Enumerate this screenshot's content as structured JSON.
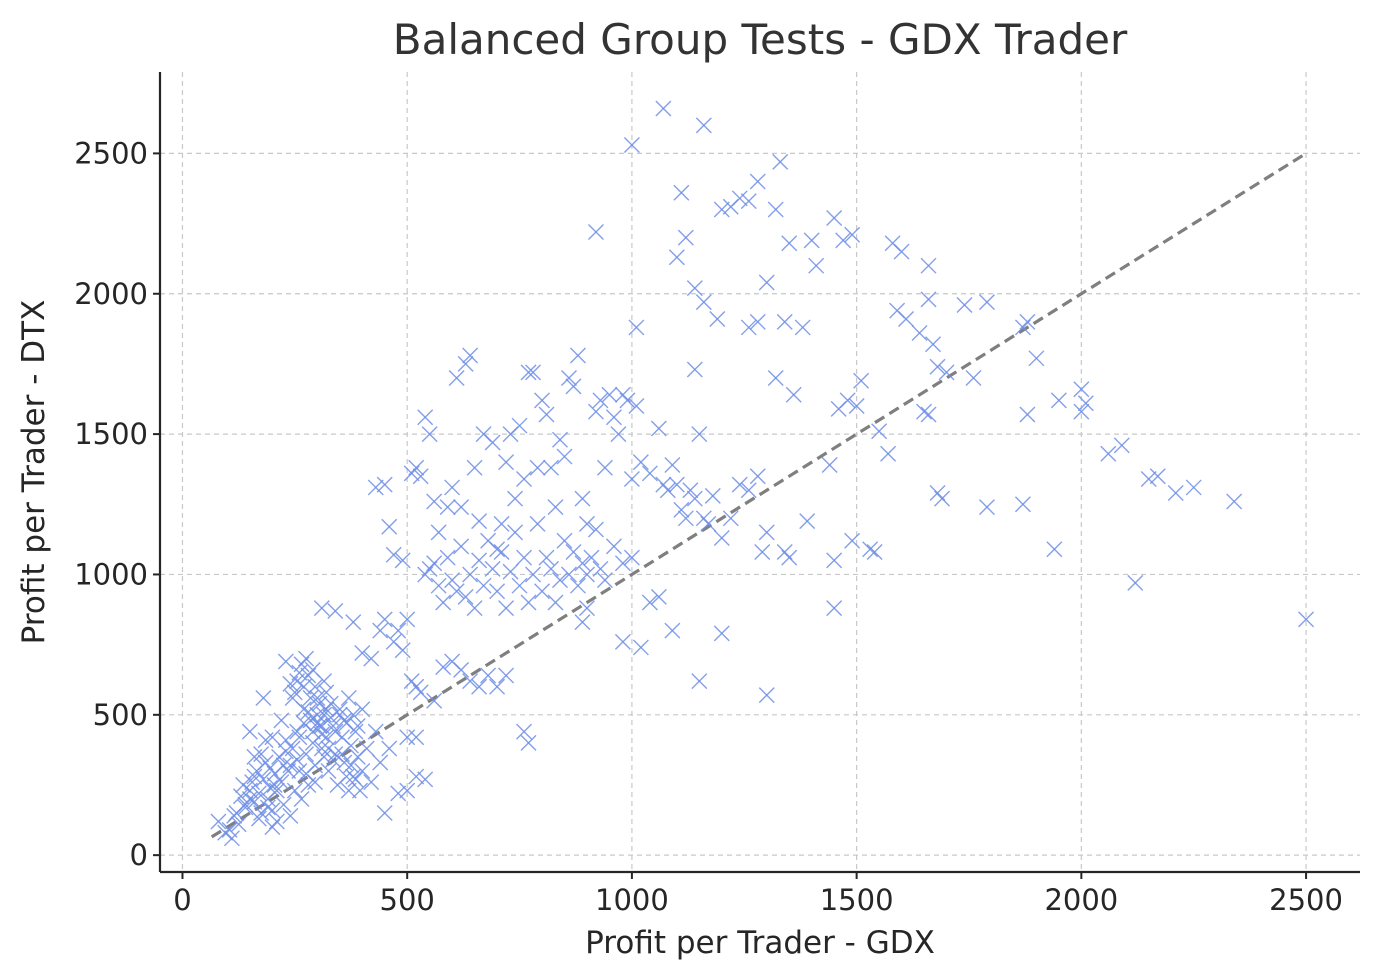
{
  "chart_data": {
    "type": "scatter",
    "title": "Balanced Group Tests - GDX Trader",
    "xlabel": "Profit per Trader - GDX",
    "ylabel": "Profit per Trader - DTX",
    "xlim": [
      -50,
      2620
    ],
    "ylim": [
      -60,
      2790
    ],
    "xticks": [
      0,
      500,
      1000,
      1500,
      2000,
      2500
    ],
    "yticks": [
      0,
      500,
      1000,
      1500,
      2000,
      2500
    ],
    "grid": true,
    "legend": "none",
    "marker": "x",
    "marker_color": "#6f8ee6",
    "reference_line": {
      "style": "dashed",
      "color": "#7f7f7f",
      "x": [
        65,
        2500
      ],
      "y": [
        65,
        2500
      ]
    },
    "points": [
      [
        80,
        120
      ],
      [
        95,
        80
      ],
      [
        110,
        60
      ],
      [
        120,
        150
      ],
      [
        130,
        210
      ],
      [
        140,
        170
      ],
      [
        150,
        230
      ],
      [
        155,
        260
      ],
      [
        160,
        190
      ],
      [
        165,
        300
      ],
      [
        170,
        220
      ],
      [
        175,
        150
      ],
      [
        180,
        270
      ],
      [
        185,
        330
      ],
      [
        190,
        200
      ],
      [
        195,
        240
      ],
      [
        200,
        160
      ],
      [
        205,
        290
      ],
      [
        210,
        120
      ],
      [
        215,
        350
      ],
      [
        220,
        260
      ],
      [
        225,
        180
      ],
      [
        230,
        410
      ],
      [
        235,
        300
      ],
      [
        240,
        140
      ],
      [
        245,
        380
      ],
      [
        250,
        230
      ],
      [
        255,
        440
      ],
      [
        260,
        300
      ],
      [
        265,
        200
      ],
      [
        270,
        520
      ],
      [
        275,
        360
      ],
      [
        280,
        250
      ],
      [
        285,
        480
      ],
      [
        290,
        400
      ],
      [
        295,
        320
      ],
      [
        300,
        560
      ],
      [
        305,
        460
      ],
      [
        310,
        380
      ],
      [
        315,
        500
      ],
      [
        320,
        420
      ],
      [
        325,
        300
      ],
      [
        330,
        540
      ],
      [
        335,
        460
      ],
      [
        340,
        360
      ],
      [
        345,
        250
      ],
      [
        350,
        500
      ],
      [
        355,
        420
      ],
      [
        360,
        330
      ],
      [
        365,
        470
      ],
      [
        370,
        230
      ],
      [
        375,
        390
      ],
      [
        380,
        280
      ],
      [
        385,
        440
      ],
      [
        390,
        350
      ],
      [
        400,
        300
      ],
      [
        410,
        380
      ],
      [
        420,
        260
      ],
      [
        430,
        440
      ],
      [
        440,
        330
      ],
      [
        450,
        150
      ],
      [
        460,
        380
      ],
      [
        480,
        220
      ],
      [
        500,
        420
      ],
      [
        520,
        280
      ],
      [
        250,
        580
      ],
      [
        255,
        620
      ],
      [
        260,
        650
      ],
      [
        265,
        680
      ],
      [
        270,
        600
      ],
      [
        275,
        700
      ],
      [
        280,
        640
      ],
      [
        285,
        560
      ],
      [
        290,
        660
      ],
      [
        295,
        600
      ],
      [
        300,
        500
      ],
      [
        305,
        540
      ],
      [
        310,
        460
      ],
      [
        315,
        620
      ],
      [
        320,
        580
      ],
      [
        230,
        690
      ],
      [
        240,
        610
      ],
      [
        245,
        560
      ],
      [
        200,
        100
      ],
      [
        210,
        230
      ],
      [
        190,
        170
      ],
      [
        170,
        130
      ],
      [
        150,
        200
      ],
      [
        140,
        180
      ],
      [
        125,
        110
      ],
      [
        115,
        140
      ],
      [
        105,
        90
      ],
      [
        135,
        250
      ],
      [
        160,
        350
      ],
      [
        180,
        560
      ],
      [
        200,
        420
      ],
      [
        220,
        480
      ],
      [
        230,
        370
      ],
      [
        240,
        320
      ],
      [
        260,
        420
      ],
      [
        270,
        470
      ],
      [
        280,
        510
      ],
      [
        290,
        440
      ],
      [
        300,
        470
      ],
      [
        310,
        430
      ],
      [
        320,
        520
      ],
      [
        330,
        490
      ],
      [
        340,
        440
      ],
      [
        350,
        520
      ],
      [
        360,
        480
      ],
      [
        370,
        560
      ],
      [
        380,
        500
      ],
      [
        390,
        460
      ],
      [
        400,
        520
      ],
      [
        150,
        440
      ],
      [
        160,
        280
      ],
      [
        175,
        360
      ],
      [
        185,
        410
      ],
      [
        195,
        310
      ],
      [
        205,
        250
      ],
      [
        225,
        320
      ],
      [
        255,
        340
      ],
      [
        275,
        290
      ],
      [
        295,
        260
      ],
      [
        315,
        350
      ],
      [
        325,
        380
      ],
      [
        335,
        340
      ],
      [
        355,
        360
      ],
      [
        365,
        280
      ],
      [
        375,
        320
      ],
      [
        385,
        270
      ],
      [
        395,
        230
      ],
      [
        310,
        880
      ],
      [
        340,
        870
      ],
      [
        380,
        830
      ],
      [
        400,
        720
      ],
      [
        420,
        700
      ],
      [
        440,
        800
      ],
      [
        450,
        840
      ],
      [
        470,
        760
      ],
      [
        480,
        800
      ],
      [
        490,
        730
      ],
      [
        500,
        840
      ],
      [
        510,
        620
      ],
      [
        520,
        600
      ],
      [
        530,
        580
      ],
      [
        540,
        1000
      ],
      [
        550,
        1020
      ],
      [
        560,
        1040
      ],
      [
        570,
        960
      ],
      [
        580,
        900
      ],
      [
        590,
        1060
      ],
      [
        600,
        980
      ],
      [
        610,
        940
      ],
      [
        620,
        1100
      ],
      [
        630,
        920
      ],
      [
        640,
        1000
      ],
      [
        650,
        880
      ],
      [
        660,
        1050
      ],
      [
        670,
        960
      ],
      [
        680,
        1120
      ],
      [
        690,
        1020
      ],
      [
        700,
        940
      ],
      [
        710,
        1080
      ],
      [
        720,
        880
      ],
      [
        730,
        1010
      ],
      [
        740,
        1150
      ],
      [
        750,
        960
      ],
      [
        760,
        1060
      ],
      [
        770,
        900
      ],
      [
        780,
        1000
      ],
      [
        790,
        1180
      ],
      [
        800,
        940
      ],
      [
        810,
        1060
      ],
      [
        820,
        1020
      ],
      [
        830,
        900
      ],
      [
        840,
        980
      ],
      [
        850,
        1120
      ],
      [
        860,
        1000
      ],
      [
        870,
        1080
      ],
      [
        880,
        960
      ],
      [
        890,
        1040
      ],
      [
        900,
        1000
      ],
      [
        910,
        1060
      ],
      [
        920,
        1160
      ],
      [
        930,
        1020
      ],
      [
        940,
        980
      ],
      [
        960,
        1100
      ],
      [
        980,
        1040
      ],
      [
        1000,
        1060
      ],
      [
        430,
        1310
      ],
      [
        450,
        1320
      ],
      [
        460,
        1170
      ],
      [
        470,
        1070
      ],
      [
        490,
        1050
      ],
      [
        510,
        1360
      ],
      [
        520,
        1380
      ],
      [
        530,
        1350
      ],
      [
        540,
        1560
      ],
      [
        550,
        1500
      ],
      [
        560,
        1260
      ],
      [
        570,
        1150
      ],
      [
        590,
        1240
      ],
      [
        600,
        1310
      ],
      [
        610,
        1700
      ],
      [
        620,
        1240
      ],
      [
        630,
        1750
      ],
      [
        640,
        1780
      ],
      [
        650,
        1380
      ],
      [
        660,
        1190
      ],
      [
        670,
        1500
      ],
      [
        690,
        1470
      ],
      [
        700,
        1090
      ],
      [
        710,
        1180
      ],
      [
        720,
        1400
      ],
      [
        730,
        1500
      ],
      [
        740,
        1270
      ],
      [
        750,
        1530
      ],
      [
        760,
        1340
      ],
      [
        770,
        1720
      ],
      [
        780,
        1720
      ],
      [
        790,
        1380
      ],
      [
        800,
        1620
      ],
      [
        810,
        1570
      ],
      [
        820,
        1380
      ],
      [
        830,
        1240
      ],
      [
        840,
        1480
      ],
      [
        850,
        1420
      ],
      [
        860,
        1700
      ],
      [
        870,
        1670
      ],
      [
        880,
        1780
      ],
      [
        890,
        1270
      ],
      [
        900,
        1180
      ],
      [
        920,
        1580
      ],
      [
        930,
        1620
      ],
      [
        940,
        1380
      ],
      [
        950,
        1640
      ],
      [
        960,
        1560
      ],
      [
        970,
        1500
      ],
      [
        980,
        1640
      ],
      [
        990,
        1620
      ],
      [
        1000,
        1340
      ],
      [
        1010,
        1600
      ],
      [
        1020,
        1400
      ],
      [
        1040,
        1360
      ],
      [
        1060,
        1520
      ],
      [
        1070,
        1320
      ],
      [
        1080,
        1300
      ],
      [
        1090,
        1390
      ],
      [
        1100,
        1320
      ],
      [
        1110,
        1230
      ],
      [
        1120,
        1200
      ],
      [
        1130,
        1300
      ],
      [
        1140,
        1270
      ],
      [
        1150,
        1500
      ],
      [
        1160,
        1200
      ],
      [
        1170,
        1180
      ],
      [
        1180,
        1280
      ],
      [
        1200,
        1130
      ],
      [
        1220,
        1200
      ],
      [
        1240,
        1320
      ],
      [
        1260,
        1300
      ],
      [
        1280,
        1350
      ],
      [
        1290,
        1080
      ],
      [
        1300,
        1150
      ],
      [
        1340,
        1080
      ],
      [
        1350,
        1060
      ],
      [
        1390,
        1190
      ],
      [
        1450,
        1050
      ],
      [
        1490,
        1120
      ],
      [
        1530,
        1090
      ],
      [
        1540,
        1080
      ],
      [
        890,
        830
      ],
      [
        900,
        880
      ],
      [
        980,
        760
      ],
      [
        1020,
        740
      ],
      [
        1040,
        900
      ],
      [
        1060,
        920
      ],
      [
        1090,
        800
      ],
      [
        1150,
        620
      ],
      [
        1200,
        790
      ],
      [
        1300,
        570
      ],
      [
        770,
        400
      ],
      [
        760,
        440
      ],
      [
        720,
        640
      ],
      [
        700,
        600
      ],
      [
        680,
        640
      ],
      [
        660,
        600
      ],
      [
        640,
        620
      ],
      [
        620,
        660
      ],
      [
        600,
        690
      ],
      [
        580,
        670
      ],
      [
        560,
        550
      ],
      [
        540,
        270
      ],
      [
        520,
        420
      ],
      [
        500,
        230
      ],
      [
        920,
        2220
      ],
      [
        1000,
        2530
      ],
      [
        1070,
        2660
      ],
      [
        1160,
        2600
      ],
      [
        1110,
        2360
      ],
      [
        1200,
        2300
      ],
      [
        1220,
        2310
      ],
      [
        1240,
        2340
      ],
      [
        1260,
        2330
      ],
      [
        1280,
        2400
      ],
      [
        1320,
        2300
      ],
      [
        1330,
        2470
      ],
      [
        1350,
        2180
      ],
      [
        1400,
        2190
      ],
      [
        1410,
        2100
      ],
      [
        1450,
        2270
      ],
      [
        1470,
        2190
      ],
      [
        1490,
        2210
      ],
      [
        1580,
        2180
      ],
      [
        1600,
        2150
      ],
      [
        1660,
        2100
      ],
      [
        1100,
        2130
      ],
      [
        1120,
        2200
      ],
      [
        1140,
        2020
      ],
      [
        1160,
        1970
      ],
      [
        1190,
        1910
      ],
      [
        1260,
        1880
      ],
      [
        1280,
        1900
      ],
      [
        1300,
        2040
      ],
      [
        1340,
        1900
      ],
      [
        1380,
        1880
      ],
      [
        1590,
        1940
      ],
      [
        1610,
        1910
      ],
      [
        1640,
        1860
      ],
      [
        1660,
        1980
      ],
      [
        1670,
        1820
      ],
      [
        1740,
        1960
      ],
      [
        1790,
        1970
      ],
      [
        1870,
        1880
      ],
      [
        1880,
        1900
      ],
      [
        1900,
        1770
      ],
      [
        1010,
        1880
      ],
      [
        1140,
        1730
      ],
      [
        1320,
        1700
      ],
      [
        1360,
        1640
      ],
      [
        1460,
        1590
      ],
      [
        1480,
        1620
      ],
      [
        1500,
        1600
      ],
      [
        1510,
        1690
      ],
      [
        1650,
        1580
      ],
      [
        1660,
        1570
      ],
      [
        1680,
        1740
      ],
      [
        1700,
        1720
      ],
      [
        1760,
        1700
      ],
      [
        1950,
        1620
      ],
      [
        2000,
        1580
      ],
      [
        2000,
        1660
      ],
      [
        2010,
        1610
      ],
      [
        1880,
        1570
      ],
      [
        1550,
        1510
      ],
      [
        1570,
        1430
      ],
      [
        1440,
        1390
      ],
      [
        1680,
        1290
      ],
      [
        1690,
        1270
      ],
      [
        1790,
        1240
      ],
      [
        1870,
        1250
      ],
      [
        2060,
        1430
      ],
      [
        2090,
        1460
      ],
      [
        2150,
        1340
      ],
      [
        2170,
        1350
      ],
      [
        2210,
        1290
      ],
      [
        2250,
        1310
      ],
      [
        2340,
        1260
      ],
      [
        1940,
        1090
      ],
      [
        2120,
        970
      ],
      [
        1450,
        880
      ],
      [
        2500,
        840
      ]
    ]
  }
}
